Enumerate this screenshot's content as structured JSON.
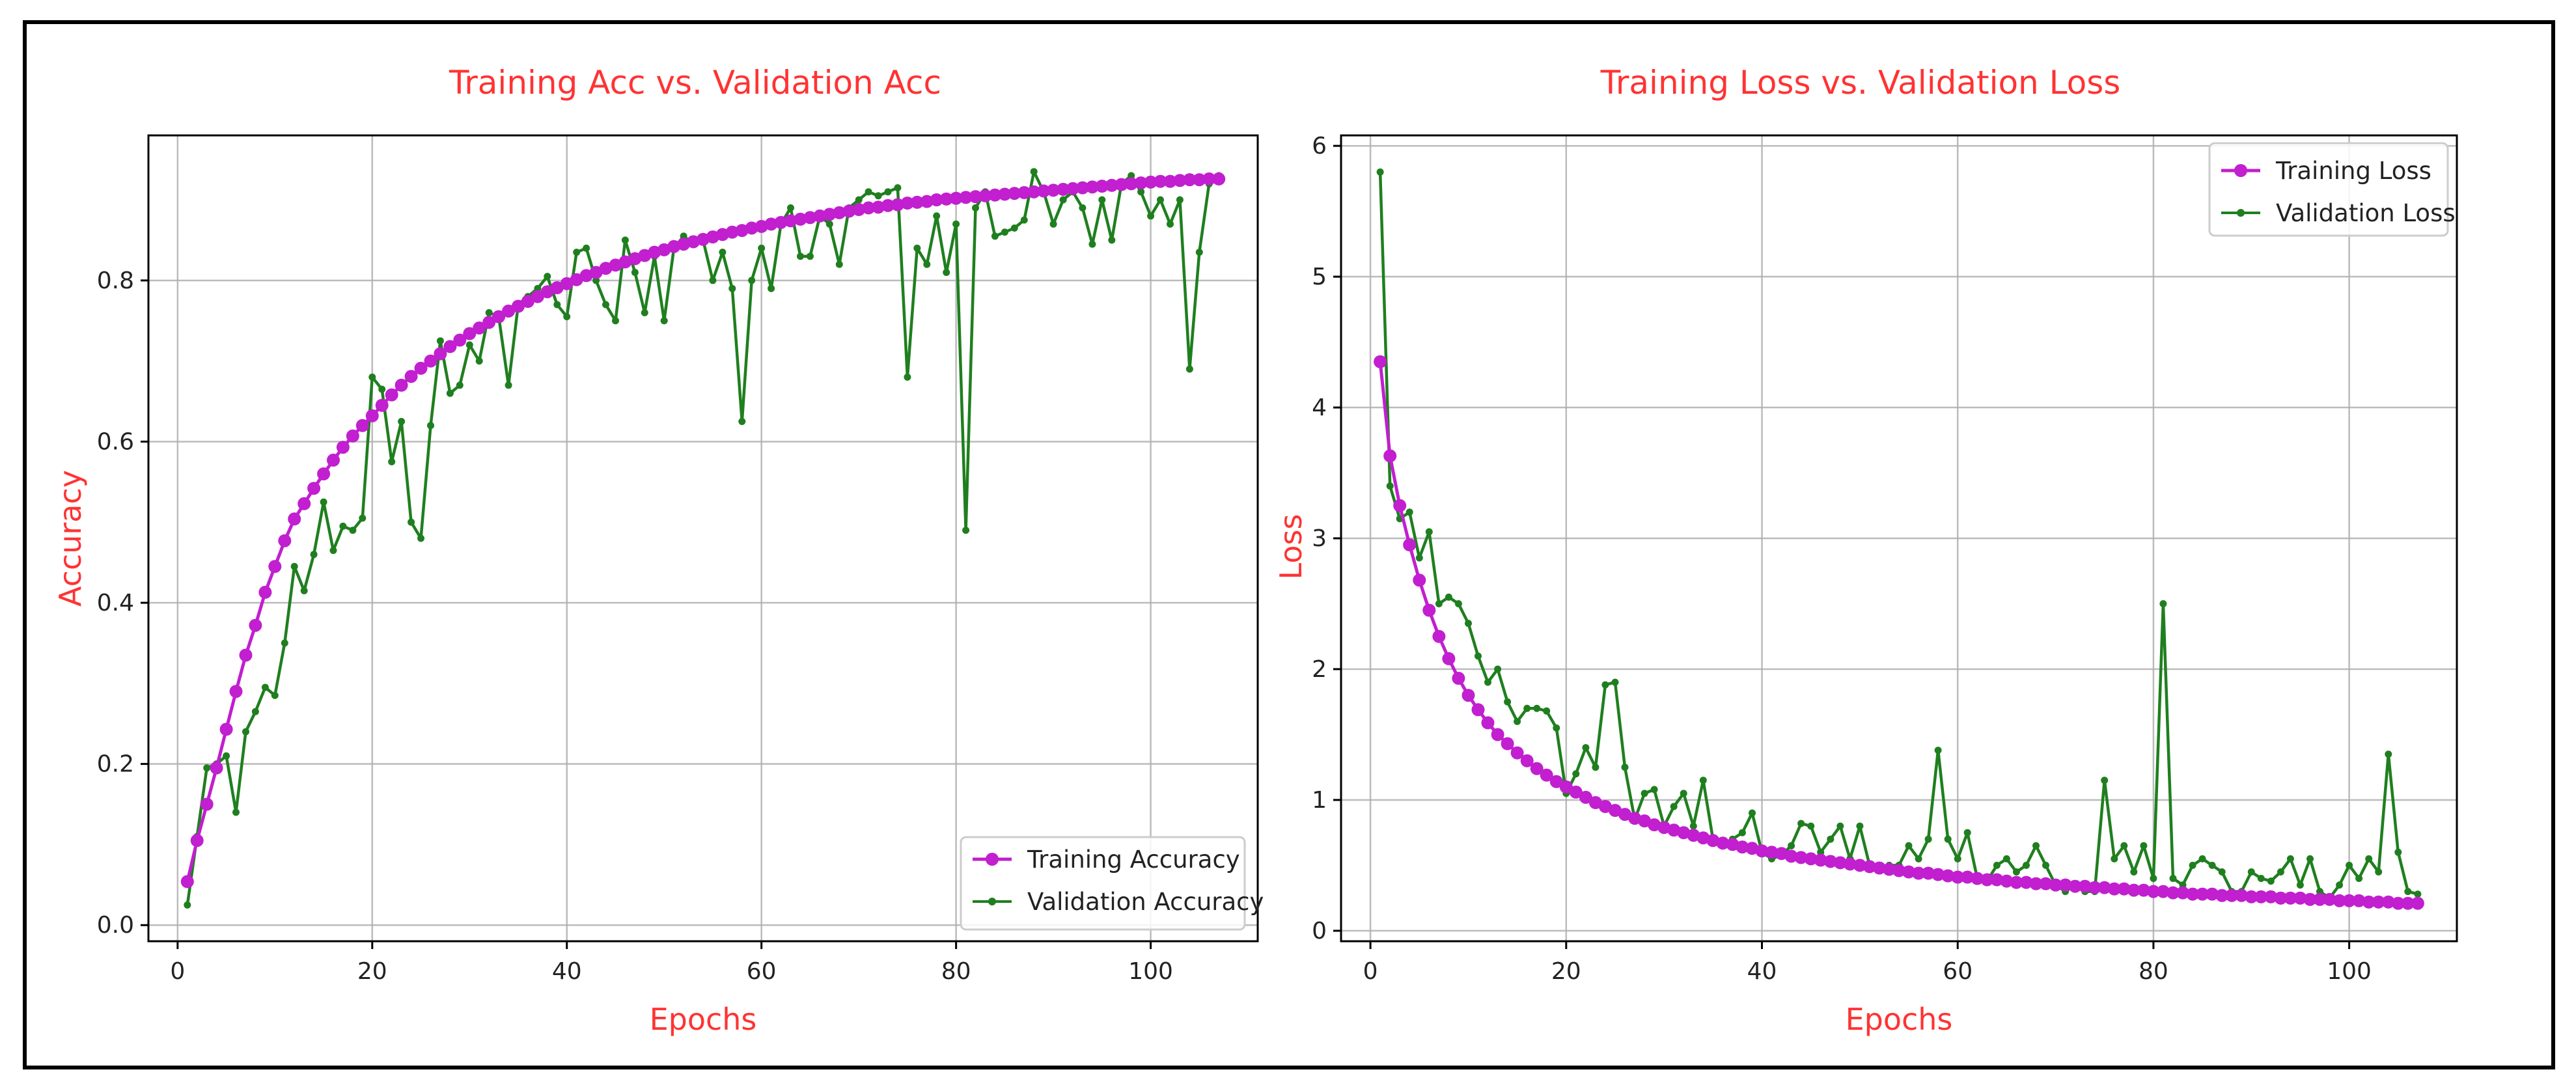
{
  "colors": {
    "title": "#ff3333",
    "axis_label": "#ff3333",
    "training": "#c11fcf",
    "validation": "#1f7f1f"
  },
  "chart_data": [
    {
      "type": "line",
      "title": "Training Acc vs. Validation Acc",
      "xlabel": "Epochs",
      "ylabel": "Accuracy",
      "xlim": [
        -3,
        111
      ],
      "ylim": [
        -0.02,
        0.98
      ],
      "xticks": [
        0,
        20,
        40,
        60,
        80,
        100
      ],
      "yticks": [
        0.0,
        0.2,
        0.4,
        0.6,
        0.8
      ],
      "ytick_labels": [
        "0.0",
        "0.2",
        "0.4",
        "0.6",
        "0.8"
      ],
      "grid": true,
      "legend_position": "lower-right",
      "series": [
        {
          "name": "Training Accuracy",
          "marker": "circle",
          "x_start": 1,
          "values": [
            0.054,
            0.105,
            0.15,
            0.195,
            0.243,
            0.29,
            0.335,
            0.372,
            0.413,
            0.445,
            0.477,
            0.504,
            0.523,
            0.542,
            0.56,
            0.577,
            0.593,
            0.607,
            0.62,
            0.632,
            0.645,
            0.658,
            0.67,
            0.681,
            0.691,
            0.7,
            0.709,
            0.718,
            0.726,
            0.734,
            0.741,
            0.748,
            0.755,
            0.762,
            0.768,
            0.774,
            0.78,
            0.786,
            0.791,
            0.796,
            0.801,
            0.806,
            0.81,
            0.815,
            0.819,
            0.823,
            0.827,
            0.831,
            0.835,
            0.838,
            0.842,
            0.845,
            0.848,
            0.851,
            0.854,
            0.857,
            0.86,
            0.862,
            0.865,
            0.867,
            0.87,
            0.872,
            0.874,
            0.876,
            0.878,
            0.88,
            0.882,
            0.884,
            0.886,
            0.888,
            0.89,
            0.891,
            0.893,
            0.894,
            0.896,
            0.897,
            0.898,
            0.9,
            0.901,
            0.902,
            0.903,
            0.904,
            0.905,
            0.906,
            0.907,
            0.908,
            0.909,
            0.91,
            0.911,
            0.912,
            0.913,
            0.914,
            0.915,
            0.916,
            0.917,
            0.918,
            0.919,
            0.92,
            0.921,
            0.922,
            0.923,
            0.923,
            0.924,
            0.925,
            0.925,
            0.926,
            0.926
          ]
        },
        {
          "name": "Validation Accuracy",
          "marker": "dot",
          "x_start": 1,
          "values": [
            0.025,
            0.11,
            0.195,
            0.2,
            0.21,
            0.14,
            0.24,
            0.265,
            0.295,
            0.285,
            0.35,
            0.445,
            0.415,
            0.46,
            0.525,
            0.465,
            0.495,
            0.49,
            0.505,
            0.68,
            0.665,
            0.575,
            0.625,
            0.5,
            0.48,
            0.62,
            0.725,
            0.66,
            0.67,
            0.72,
            0.7,
            0.76,
            0.755,
            0.67,
            0.77,
            0.78,
            0.79,
            0.805,
            0.77,
            0.755,
            0.835,
            0.84,
            0.8,
            0.77,
            0.75,
            0.85,
            0.81,
            0.76,
            0.83,
            0.75,
            0.84,
            0.855,
            0.845,
            0.85,
            0.8,
            0.835,
            0.79,
            0.625,
            0.8,
            0.84,
            0.79,
            0.87,
            0.89,
            0.83,
            0.83,
            0.88,
            0.87,
            0.82,
            0.89,
            0.9,
            0.91,
            0.905,
            0.91,
            0.915,
            0.68,
            0.84,
            0.82,
            0.88,
            0.81,
            0.87,
            0.49,
            0.89,
            0.91,
            0.855,
            0.86,
            0.865,
            0.875,
            0.935,
            0.91,
            0.87,
            0.9,
            0.91,
            0.89,
            0.845,
            0.9,
            0.85,
            0.92,
            0.93,
            0.91,
            0.88,
            0.9,
            0.87,
            0.9,
            0.69,
            0.835,
            0.92,
            0.93
          ]
        }
      ]
    },
    {
      "type": "line",
      "title": "Training Loss vs. Validation Loss",
      "xlabel": "Epochs",
      "ylabel": "Loss",
      "xlim": [
        -3,
        111
      ],
      "ylim": [
        -0.08,
        6.08
      ],
      "xticks": [
        0,
        20,
        40,
        60,
        80,
        100
      ],
      "yticks": [
        0,
        1,
        2,
        3,
        4,
        5,
        6
      ],
      "ytick_labels": [
        "0",
        "1",
        "2",
        "3",
        "4",
        "5",
        "6"
      ],
      "grid": true,
      "legend_position": "top-right",
      "series": [
        {
          "name": "Training Loss",
          "marker": "circle",
          "x_start": 1,
          "values": [
            4.35,
            3.63,
            3.25,
            2.95,
            2.68,
            2.45,
            2.25,
            2.08,
            1.93,
            1.8,
            1.69,
            1.59,
            1.5,
            1.43,
            1.36,
            1.3,
            1.24,
            1.19,
            1.14,
            1.1,
            1.06,
            1.02,
            0.98,
            0.95,
            0.92,
            0.89,
            0.86,
            0.84,
            0.81,
            0.79,
            0.77,
            0.75,
            0.73,
            0.71,
            0.69,
            0.67,
            0.66,
            0.64,
            0.63,
            0.61,
            0.6,
            0.59,
            0.57,
            0.56,
            0.55,
            0.54,
            0.53,
            0.52,
            0.51,
            0.5,
            0.49,
            0.48,
            0.47,
            0.46,
            0.45,
            0.44,
            0.44,
            0.43,
            0.42,
            0.41,
            0.41,
            0.4,
            0.39,
            0.39,
            0.38,
            0.37,
            0.37,
            0.36,
            0.36,
            0.35,
            0.35,
            0.34,
            0.34,
            0.33,
            0.33,
            0.32,
            0.32,
            0.31,
            0.31,
            0.3,
            0.3,
            0.29,
            0.29,
            0.28,
            0.28,
            0.28,
            0.27,
            0.27,
            0.27,
            0.26,
            0.26,
            0.26,
            0.25,
            0.25,
            0.25,
            0.24,
            0.24,
            0.24,
            0.23,
            0.23,
            0.23,
            0.22,
            0.22,
            0.22,
            0.21,
            0.21,
            0.21
          ]
        },
        {
          "name": "Validation Loss",
          "marker": "dot",
          "x_start": 1,
          "values": [
            5.8,
            3.4,
            3.15,
            3.2,
            2.85,
            3.05,
            2.5,
            2.55,
            2.5,
            2.35,
            2.1,
            1.9,
            2.0,
            1.75,
            1.6,
            1.7,
            1.7,
            1.68,
            1.55,
            1.05,
            1.2,
            1.4,
            1.25,
            1.88,
            1.9,
            1.25,
            0.85,
            1.05,
            1.08,
            0.8,
            0.95,
            1.05,
            0.8,
            1.15,
            0.7,
            0.65,
            0.7,
            0.75,
            0.9,
            0.6,
            0.55,
            0.58,
            0.65,
            0.82,
            0.8,
            0.6,
            0.7,
            0.8,
            0.55,
            0.8,
            0.5,
            0.48,
            0.5,
            0.5,
            0.65,
            0.55,
            0.7,
            1.38,
            0.7,
            0.55,
            0.75,
            0.4,
            0.38,
            0.5,
            0.55,
            0.45,
            0.5,
            0.65,
            0.5,
            0.35,
            0.3,
            0.35,
            0.3,
            0.3,
            1.15,
            0.55,
            0.65,
            0.45,
            0.65,
            0.4,
            2.5,
            0.4,
            0.35,
            0.5,
            0.55,
            0.5,
            0.45,
            0.3,
            0.3,
            0.45,
            0.4,
            0.38,
            0.45,
            0.55,
            0.35,
            0.55,
            0.3,
            0.25,
            0.35,
            0.5,
            0.4,
            0.55,
            0.45,
            1.35,
            0.6,
            0.3,
            0.28
          ]
        }
      ]
    }
  ]
}
